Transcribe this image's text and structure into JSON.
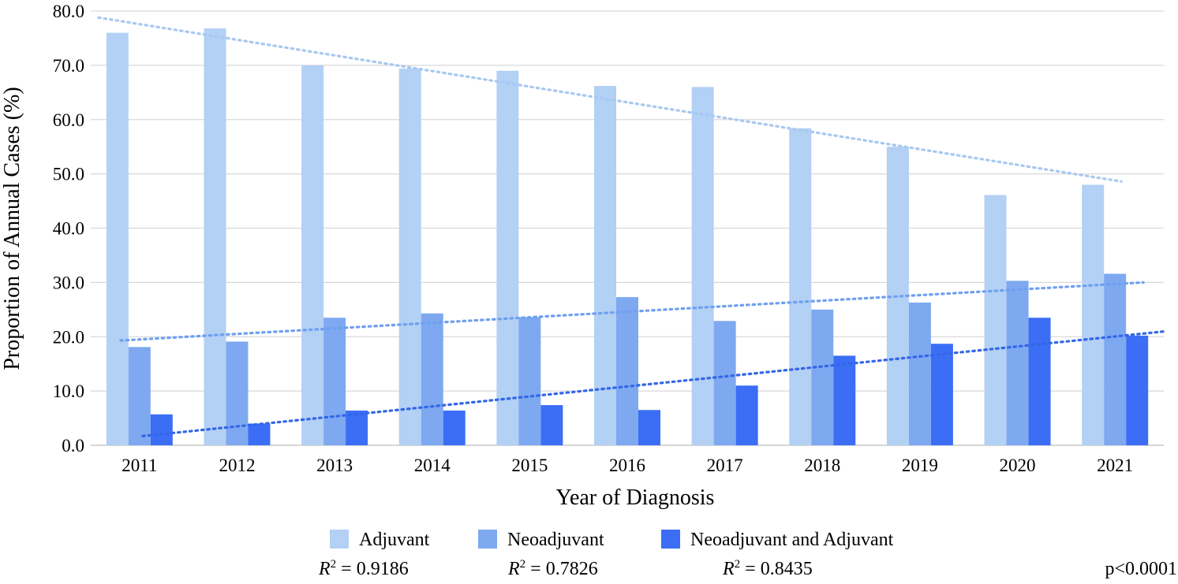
{
  "chart_data": {
    "type": "bar",
    "ylabel": "Proportion of Annual Cases (%)",
    "xlabel": "Year of Diagnosis",
    "ylim": [
      0,
      80
    ],
    "y_ticks": [
      "0.0",
      "10.0",
      "20.0",
      "30.0",
      "40.0",
      "50.0",
      "60.0",
      "70.0",
      "80.0"
    ],
    "categories": [
      "2011",
      "2012",
      "2013",
      "2014",
      "2015",
      "2016",
      "2017",
      "2018",
      "2019",
      "2020",
      "2021"
    ],
    "series": [
      {
        "name": "Adjuvant",
        "color": "#b3d0f5",
        "values": [
          76.0,
          76.8,
          70.0,
          69.4,
          69.0,
          66.2,
          66.0,
          58.4,
          55.0,
          46.1,
          48.0
        ],
        "trendline": {
          "start": 78.8,
          "end": 48.6,
          "color": "#a7c8f0"
        },
        "r2_label": "R",
        "r2_value": " = 0.9186"
      },
      {
        "name": "Neoadjuvant",
        "color": "#7ea9f1",
        "values": [
          18.1,
          19.1,
          23.5,
          24.3,
          23.6,
          27.3,
          22.9,
          25.0,
          26.3,
          30.3,
          31.6
        ],
        "trendline": {
          "start": 19.3,
          "end": 30.0,
          "color": "#6f9ff0"
        },
        "r2_label": "R",
        "r2_value": " = 0.7826"
      },
      {
        "name": "Neoadjuvant and Adjuvant",
        "color": "#3b6ef5",
        "values": [
          5.7,
          4.0,
          6.4,
          6.4,
          7.4,
          6.5,
          11.0,
          16.5,
          18.7,
          23.5,
          20.2
        ],
        "trendline": {
          "start": 1.7,
          "end": 21.0,
          "color": "#3366e8"
        },
        "r2_label": "R",
        "r2_value": " = 0.8435"
      }
    ],
    "grid": true,
    "legend_position": "bottom",
    "p_value_text": "p<0.0001"
  }
}
